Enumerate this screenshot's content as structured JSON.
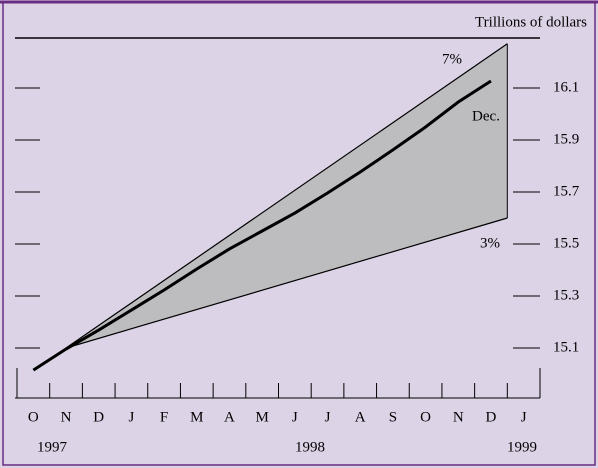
{
  "chart_data": {
    "type": "line",
    "unit_label": "Trillions of dollars",
    "categories": [
      "O",
      "N",
      "D",
      "J",
      "F",
      "M",
      "A",
      "M",
      "J",
      "J",
      "A",
      "S",
      "O",
      "N",
      "D",
      "J"
    ],
    "years": [
      "1997",
      "1998",
      "1999"
    ],
    "xlim": [
      -0.5,
      15.5
    ],
    "ylim": [
      14.9,
      16.3
    ],
    "yticks": [
      15.1,
      15.3,
      15.5,
      15.7,
      15.9,
      16.1
    ],
    "cone_color": "#bdbdc0",
    "series": [
      {
        "name": "7%",
        "color": "#000000",
        "x": [
          1,
          14.5
        ],
        "values": [
          15.1,
          16.27
        ]
      },
      {
        "name": "3%",
        "color": "#000000",
        "x": [
          1,
          14.5
        ],
        "values": [
          15.1,
          15.6
        ]
      },
      {
        "color": "#000000",
        "x": [
          0,
          1,
          2,
          3,
          4,
          5,
          6,
          7,
          8,
          9,
          10,
          11,
          12,
          13,
          14
        ],
        "values": [
          15.015,
          15.096,
          15.169,
          15.246,
          15.323,
          15.404,
          15.481,
          15.55,
          15.619,
          15.696,
          15.777,
          15.862,
          15.95,
          16.046,
          16.127
        ]
      }
    ],
    "annotations": [
      "Dec."
    ]
  }
}
